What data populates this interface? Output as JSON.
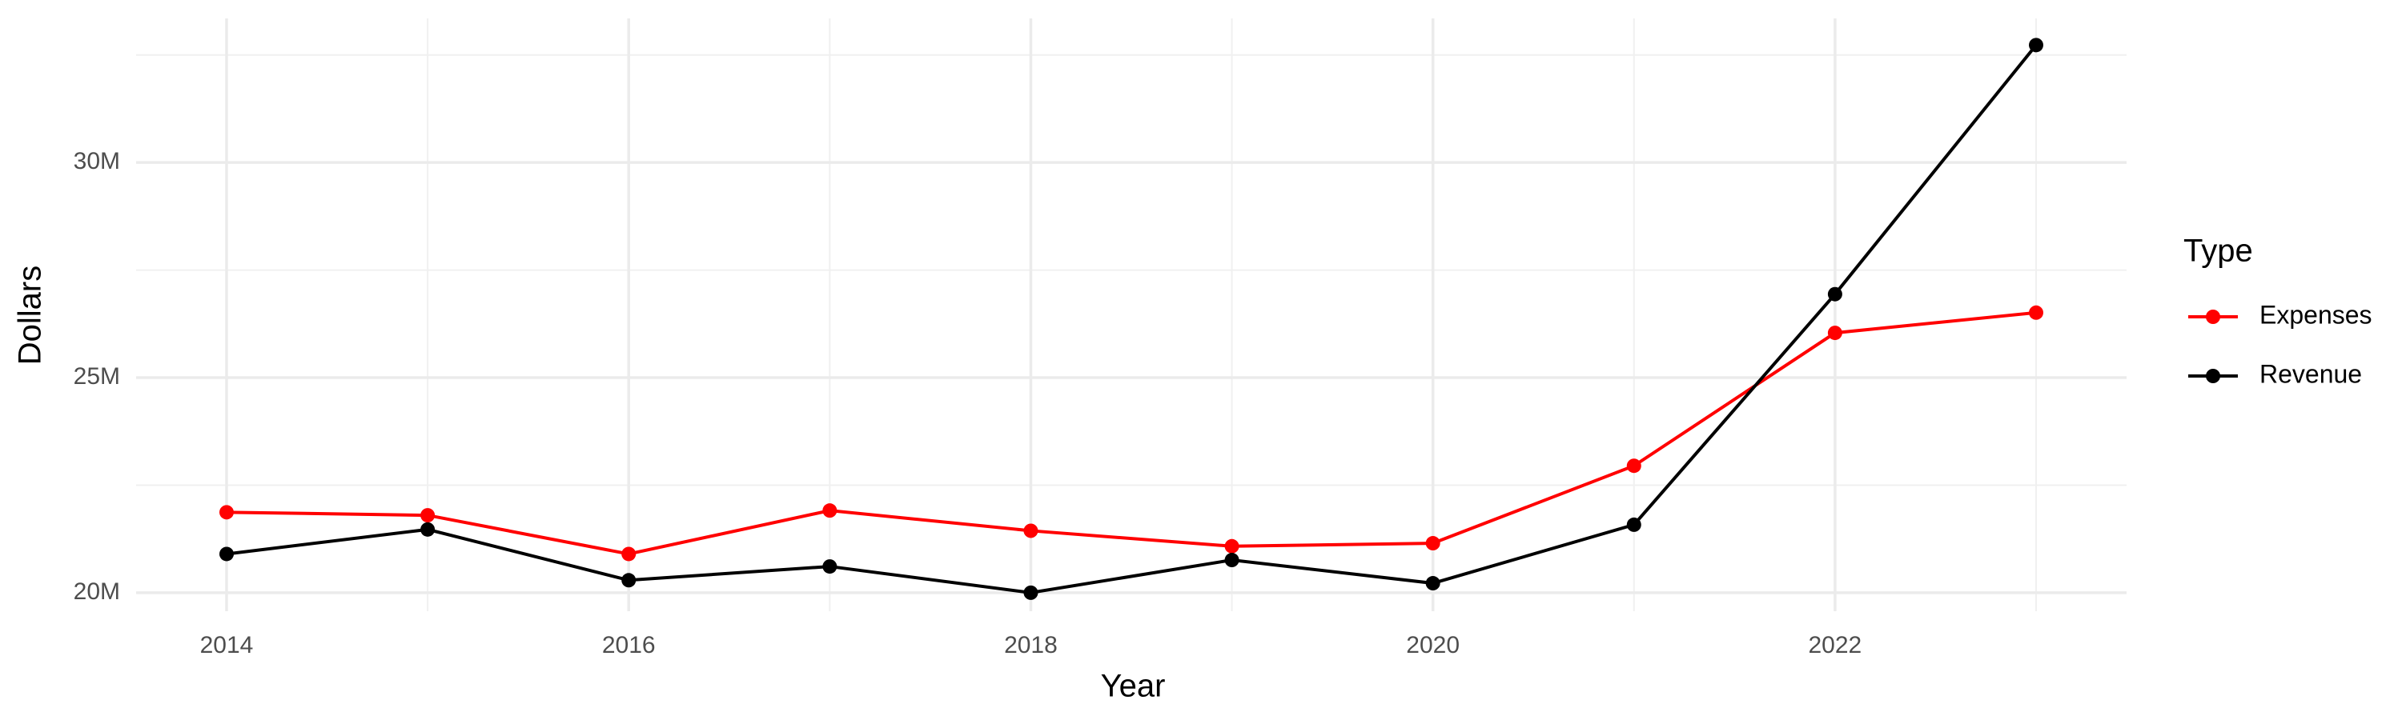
{
  "chart_data": {
    "type": "line",
    "x_label": "Year",
    "y_label": "Dollars",
    "legend_title": "Type",
    "x": [
      2014,
      2015,
      2016,
      2017,
      2018,
      2019,
      2020,
      2021,
      2022,
      2023
    ],
    "series": [
      {
        "name": "Expenses",
        "color": "#ff0000",
        "values": [
          21870000,
          21800000,
          20900000,
          21910000,
          21440000,
          21080000,
          21150000,
          22950000,
          26040000,
          26510000
        ]
      },
      {
        "name": "Revenue",
        "color": "#000000",
        "values": [
          20900000,
          21470000,
          20290000,
          20610000,
          20000000,
          20760000,
          20220000,
          21580000,
          26940000,
          32730000
        ]
      }
    ],
    "xlim": [
      2013.55,
      2023.45
    ],
    "xticks": [
      2014,
      2016,
      2018,
      2020,
      2022
    ],
    "ylim": [
      19570000,
      33350000
    ],
    "yticks": [
      {
        "value": 20000000,
        "label": "20M"
      },
      {
        "value": 25000000,
        "label": "25M"
      },
      {
        "value": 30000000,
        "label": "30M"
      }
    ],
    "grid": true,
    "legend_position": "right"
  }
}
